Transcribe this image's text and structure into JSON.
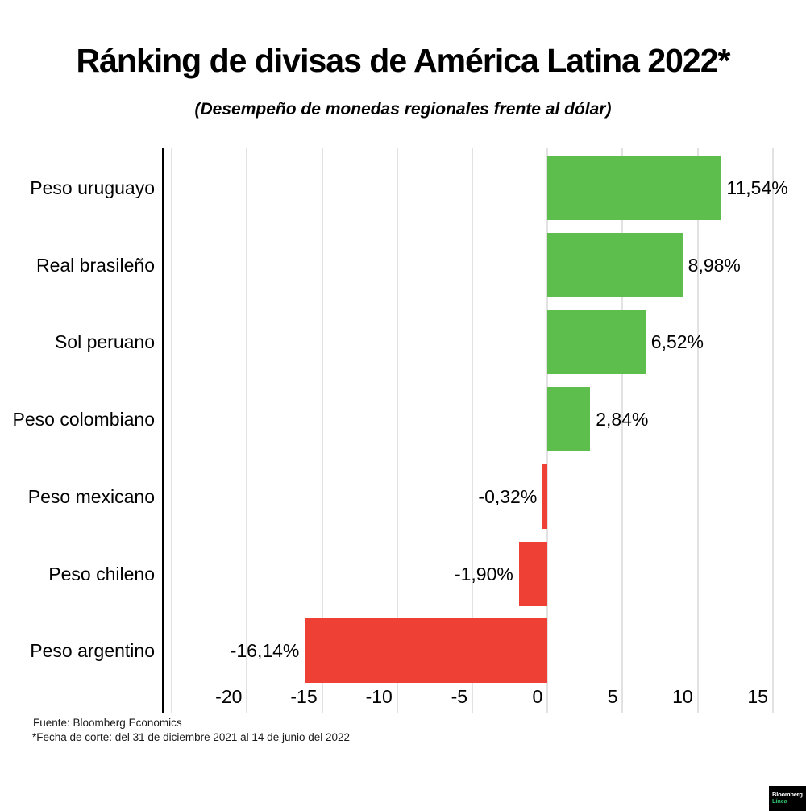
{
  "header": {
    "title": "Ránking de divisas de América Latina 2022*",
    "subtitle": "(Desempeño de monedas regionales frente al dólar)"
  },
  "chart_data": {
    "type": "bar",
    "orientation": "horizontal",
    "title": "Ránking de divisas de América Latina 2022*",
    "subtitle": "(Desempeño de monedas regionales frente al dólar)",
    "categories": [
      "Peso uruguayo",
      "Real brasileño",
      "Sol peruano",
      "Peso colombiano",
      "Peso mexicano",
      "Peso chileno",
      "Peso argentino"
    ],
    "values": [
      11.54,
      8.98,
      6.52,
      2.84,
      -0.32,
      -1.9,
      -16.14
    ],
    "value_labels": [
      "11,54%",
      "8,98%",
      "6,52%",
      "2,84%",
      "-0,32%",
      "-1,90%",
      "-16,14%"
    ],
    "x_tick_values": [
      -20,
      -15,
      -10,
      -5,
      0,
      5,
      10,
      15
    ],
    "x_tick_labels": [
      "-20",
      "-15",
      "-10",
      "-5",
      "0",
      "5",
      "10",
      "15"
    ],
    "gridline_values": [
      -25,
      -20,
      -15,
      -10,
      -5,
      0,
      5,
      10,
      15
    ],
    "xlim": [
      -25.6,
      16.4
    ],
    "grid": true,
    "legend": "none",
    "xlabel": "",
    "ylabel": "",
    "colors": {
      "positive": "#5DBE4E",
      "negative": "#EE4035",
      "gridline": "#e2e2e2",
      "axis": "#000000"
    }
  },
  "footer": {
    "source": "Fuente: Bloomberg Economics",
    "note": "*Fecha de corte: del 31 de diciembre 2021 al 14 de junio del 2022"
  },
  "logo": {
    "line1": "Bloomberg",
    "line2": "Línea",
    "bg": "#000000",
    "line1_color": "#ffffff",
    "line2_color": "#2FBE6B"
  }
}
